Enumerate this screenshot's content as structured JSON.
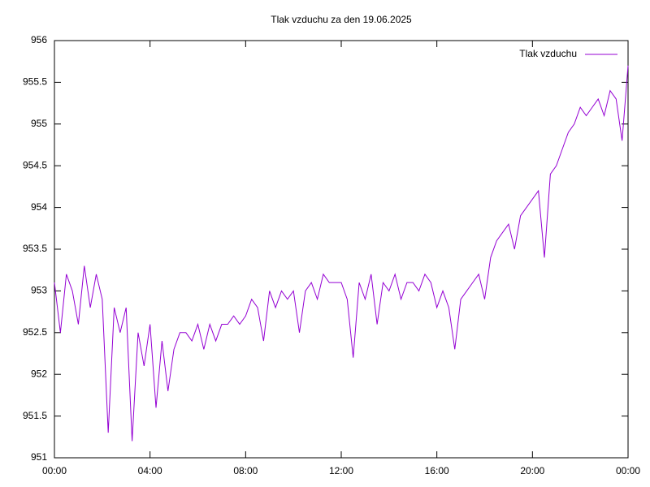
{
  "chart_data": {
    "type": "line",
    "title": "Tlak vzduchu za den 19.06.2025",
    "x": [
      0,
      0.25,
      0.5,
      0.75,
      1,
      1.25,
      1.5,
      1.75,
      2,
      2.25,
      2.5,
      2.75,
      3,
      3.25,
      3.5,
      3.75,
      4,
      4.25,
      4.5,
      4.75,
      5,
      5.25,
      5.5,
      5.75,
      6,
      6.25,
      6.5,
      6.75,
      7,
      7.25,
      7.5,
      7.75,
      8,
      8.25,
      8.5,
      8.75,
      9,
      9.25,
      9.5,
      9.75,
      10,
      10.25,
      10.5,
      10.75,
      11,
      11.25,
      11.5,
      11.75,
      12,
      12.25,
      12.5,
      12.75,
      13,
      13.25,
      13.5,
      13.75,
      14,
      14.25,
      14.5,
      14.75,
      15,
      15.25,
      15.5,
      15.75,
      16,
      16.25,
      16.5,
      16.75,
      17,
      17.25,
      17.5,
      17.75,
      18,
      18.25,
      18.5,
      18.75,
      19,
      19.25,
      19.5,
      19.75,
      20,
      20.25,
      20.5,
      20.75,
      21,
      21.25,
      21.5,
      21.75,
      22,
      22.25,
      22.5,
      22.75,
      23,
      23.25,
      23.5,
      23.75,
      24
    ],
    "series": [
      {
        "name": "Tlak vzduchu",
        "color": "#9400d3",
        "values": [
          953.1,
          952.5,
          953.2,
          953.0,
          952.6,
          953.3,
          952.8,
          953.2,
          952.9,
          951.3,
          952.8,
          952.5,
          952.8,
          951.2,
          952.5,
          952.1,
          952.6,
          951.6,
          952.4,
          951.8,
          952.3,
          952.5,
          952.5,
          952.4,
          952.6,
          952.3,
          952.6,
          952.4,
          952.6,
          952.6,
          952.7,
          952.6,
          952.7,
          952.9,
          952.8,
          952.4,
          953.0,
          952.8,
          953.0,
          952.9,
          953.0,
          952.5,
          953.0,
          953.1,
          952.9,
          953.2,
          953.1,
          953.1,
          953.1,
          952.9,
          952.2,
          953.1,
          952.9,
          953.2,
          952.6,
          953.1,
          953.0,
          953.2,
          952.9,
          953.1,
          953.1,
          953.0,
          953.2,
          953.1,
          952.8,
          953.0,
          952.8,
          952.3,
          952.9,
          953.0,
          953.1,
          953.2,
          952.9,
          953.4,
          953.6,
          953.7,
          953.8,
          953.5,
          953.9,
          954.0,
          954.1,
          954.2,
          953.4,
          954.4,
          954.5,
          954.7,
          954.9,
          955.0,
          955.2,
          955.1,
          955.2,
          955.3,
          955.1,
          955.4,
          955.3,
          954.8,
          955.7
        ]
      }
    ],
    "xlim": [
      0,
      24
    ],
    "xticks": [
      {
        "value": 0,
        "label": "00:00"
      },
      {
        "value": 4,
        "label": "04:00"
      },
      {
        "value": 8,
        "label": "08:00"
      },
      {
        "value": 12,
        "label": "12:00"
      },
      {
        "value": 16,
        "label": "16:00"
      },
      {
        "value": 20,
        "label": "20:00"
      },
      {
        "value": 24,
        "label": "00:00"
      }
    ],
    "ylim": [
      951,
      956
    ],
    "yticks": [
      951,
      951.5,
      952,
      952.5,
      953,
      953.5,
      954,
      954.5,
      955,
      955.5,
      956
    ],
    "legend": "top right"
  }
}
